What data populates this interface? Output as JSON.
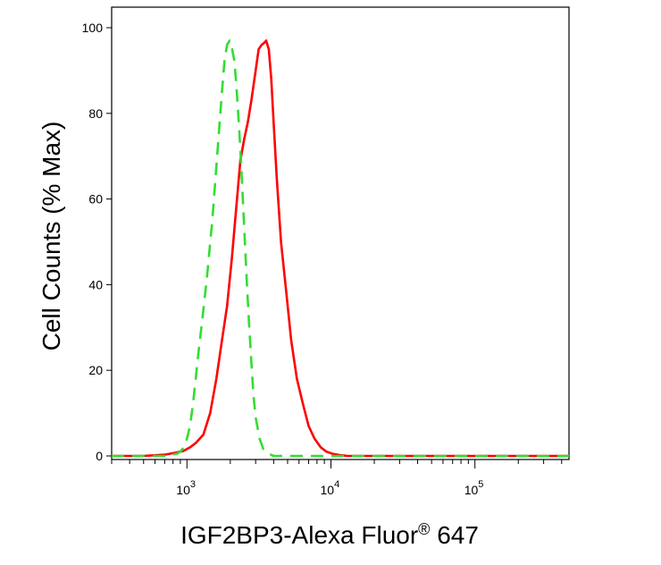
{
  "chart_data": {
    "type": "line",
    "xlabel": "IGF2BP3-Alexa Fluor",
    "xlabel_superscript": "®",
    "xlabel_suffix": " 647",
    "ylabel": "Cell Counts (% Max)",
    "x_scale": "log",
    "xlim": [
      300,
      450000
    ],
    "ylim": [
      0,
      100
    ],
    "y_ticks": [
      0,
      20,
      40,
      60,
      80,
      100
    ],
    "y_tick_labels": [
      "0",
      "20",
      "40",
      "60",
      "80",
      "100"
    ],
    "x_ticks": [
      1000,
      10000,
      100000
    ],
    "x_tick_labels": [
      {
        "base": "10",
        "exp": "3"
      },
      {
        "base": "10",
        "exp": "4"
      },
      {
        "base": "10",
        "exp": "5"
      }
    ],
    "grid": false,
    "legend": "none",
    "series": [
      {
        "color": "#ff0000",
        "style": "solid",
        "x": [
          300,
          500,
          700,
          850,
          950,
          1050,
          1150,
          1300,
          1450,
          1600,
          1750,
          1900,
          2050,
          2200,
          2350,
          2500,
          2650,
          2800,
          3000,
          3150,
          3300,
          3450,
          3550,
          3700,
          3850,
          4000,
          4200,
          4500,
          4900,
          5300,
          5800,
          6400,
          7000,
          7700,
          8500,
          9300,
          10300,
          11500,
          13000,
          20000,
          50000,
          100000,
          450000
        ],
        "y": [
          0,
          0,
          0.3,
          0.8,
          1.2,
          2,
          3,
          5,
          10,
          18,
          27,
          35,
          46,
          58,
          69,
          74,
          78,
          83,
          90,
          95,
          96,
          96.5,
          97,
          95,
          88,
          78,
          65,
          50,
          38,
          27,
          18,
          12,
          7,
          4,
          2,
          1,
          0.5,
          0.2,
          0,
          0,
          0,
          0,
          0
        ]
      },
      {
        "color": "#33dd33",
        "style": "dashed",
        "x": [
          300,
          700,
          850,
          900,
          950,
          1000,
          1050,
          1100,
          1150,
          1200,
          1280,
          1380,
          1500,
          1620,
          1740,
          1820,
          1900,
          1980,
          2060,
          2140,
          2220,
          2300,
          2380,
          2460,
          2540,
          2620,
          2700,
          2800,
          2900,
          3000,
          3200,
          3400,
          3700,
          4000,
          6000,
          20000,
          100000,
          450000
        ],
        "y": [
          0,
          0,
          0.5,
          1,
          2,
          4,
          7,
          12,
          18,
          24,
          32,
          42,
          55,
          70,
          84,
          92,
          96,
          97,
          95,
          92,
          85,
          77,
          68,
          58,
          48,
          39,
          31,
          22,
          14,
          9,
          4,
          1.5,
          0.5,
          0,
          0,
          0,
          0,
          0
        ]
      }
    ]
  }
}
